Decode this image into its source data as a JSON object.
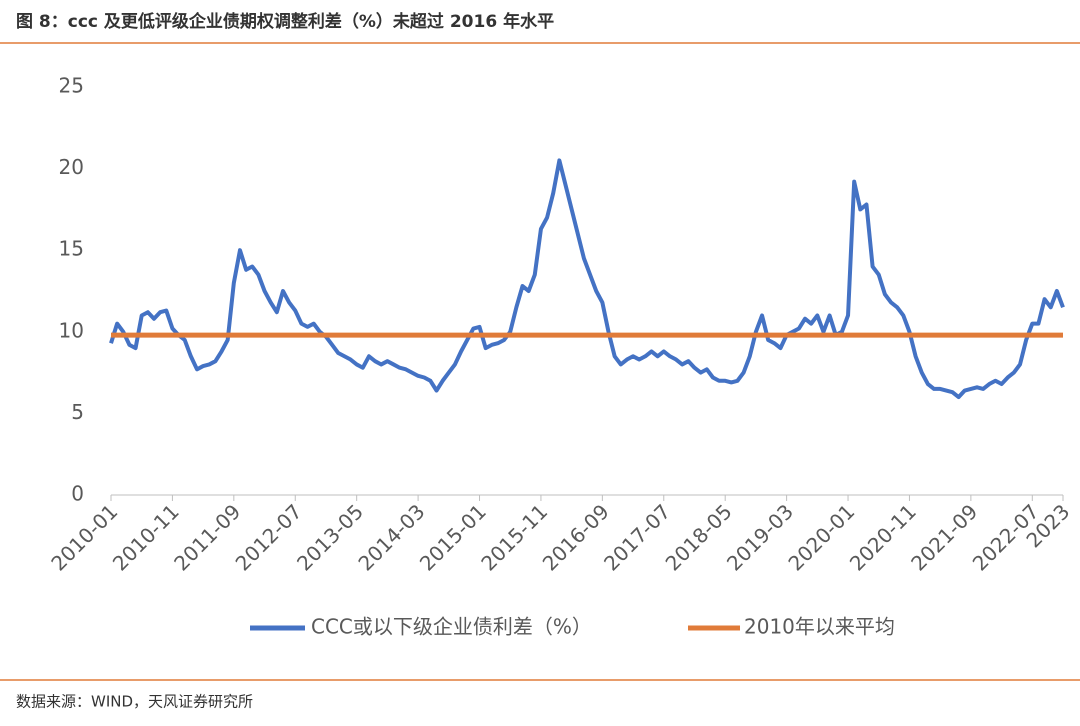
{
  "title": "图 8：ccc 及更低评级企业债期权调整利差（%）未超过 2016 年水平",
  "source": "数据来源：WIND，天风证券研究所",
  "chart_data": {
    "type": "line",
    "categories": [
      "2010-01",
      null,
      null,
      null,
      null,
      null,
      null,
      null,
      null,
      null,
      "2010-11",
      null,
      null,
      null,
      null,
      null,
      null,
      null,
      null,
      null,
      "2011-09",
      null,
      null,
      null,
      null,
      null,
      null,
      null,
      null,
      null,
      "2012-07",
      null,
      null,
      null,
      null,
      null,
      null,
      null,
      null,
      null,
      "2013-05",
      null,
      null,
      null,
      null,
      null,
      null,
      null,
      null,
      null,
      "2014-03",
      null,
      null,
      null,
      null,
      null,
      null,
      null,
      null,
      null,
      "2015-01",
      null,
      null,
      null,
      null,
      null,
      null,
      null,
      null,
      null,
      "2015-11",
      null,
      null,
      null,
      null,
      null,
      null,
      null,
      null,
      null,
      "2016-09",
      null,
      null,
      null,
      null,
      null,
      null,
      null,
      null,
      null,
      "2017-07",
      null,
      null,
      null,
      null,
      null,
      null,
      null,
      null,
      null,
      "2018-05",
      null,
      null,
      null,
      null,
      null,
      null,
      null,
      null,
      null,
      "2019-03",
      null,
      null,
      null,
      null,
      null,
      null,
      null,
      null,
      null,
      "2020-01",
      null,
      null,
      null,
      null,
      null,
      null,
      null,
      null,
      null,
      "2020-11",
      null,
      null,
      null,
      null,
      null,
      null,
      null,
      null,
      null,
      "2021-09",
      null,
      null,
      null,
      null,
      null,
      null,
      null,
      null,
      null,
      "2022-07",
      null,
      null,
      null,
      null,
      "2023"
    ],
    "series": [
      {
        "name": "CCC或以下级企业债利差（%）",
        "color": "#4472c4",
        "values": [
          9.3,
          10.5,
          10,
          9.2,
          9,
          11,
          11.2,
          10.8,
          11.2,
          11.3,
          10.2,
          9.8,
          9.5,
          8.5,
          7.7,
          7.9,
          8,
          8.2,
          8.8,
          9.5,
          13,
          15,
          13.8,
          14,
          13.5,
          12.5,
          11.8,
          11.2,
          12.5,
          11.8,
          11.3,
          10.5,
          10.3,
          10.5,
          10,
          9.7,
          9.2,
          8.7,
          8.5,
          8.3,
          8,
          7.8,
          8.5,
          8.2,
          8,
          8.2,
          8,
          7.8,
          7.7,
          7.5,
          7.3,
          7.2,
          7,
          6.4,
          7,
          7.5,
          8,
          8.8,
          9.5,
          10.2,
          10.3,
          9,
          9.2,
          9.3,
          9.5,
          10,
          11.5,
          12.8,
          12.5,
          13.5,
          16.3,
          17,
          18.5,
          20.5,
          19,
          17.5,
          16,
          14.5,
          13.5,
          12.5,
          11.8,
          10,
          8.5,
          8,
          8.3,
          8.5,
          8.3,
          8.5,
          8.8,
          8.5,
          8.8,
          8.5,
          8.3,
          8,
          8.2,
          7.8,
          7.5,
          7.7,
          7.2,
          7,
          7,
          6.9,
          7,
          7.5,
          8.5,
          10,
          11,
          9.5,
          9.3,
          9,
          9.8,
          10,
          10.2,
          10.8,
          10.5,
          11,
          10,
          11,
          9.8,
          10,
          11,
          19.2,
          17.5,
          17.8,
          14,
          13.5,
          12.3,
          11.8,
          11.5,
          11,
          10,
          8.5,
          7.5,
          6.8,
          6.5,
          6.5,
          6.4,
          6.3,
          6,
          6.4,
          6.5,
          6.6,
          6.5,
          6.8,
          7,
          6.8,
          7.2,
          7.5,
          8,
          9.5,
          10.5,
          10.5,
          12,
          11.5,
          12.5,
          11.5
        ]
      }
    ],
    "reference_line": {
      "name": "2010年以来平均",
      "color": "#e07b39",
      "value": 9.8
    },
    "ylim": [
      0,
      25
    ],
    "yticks": [
      0,
      5,
      10,
      15,
      20,
      25
    ],
    "grid": false
  }
}
